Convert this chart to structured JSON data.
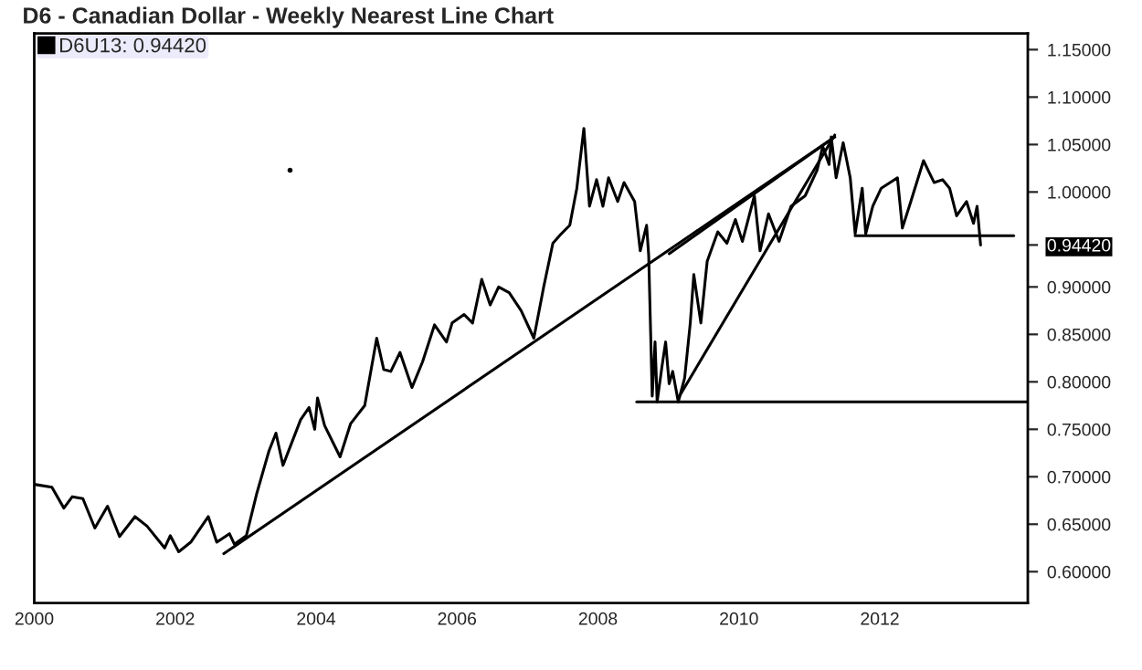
{
  "chart_data": {
    "type": "line",
    "title": "D6 - Canadian Dollar - Weekly Nearest Line Chart",
    "xlim": [
      2000,
      2014.1
    ],
    "xticks": [
      2000,
      2002,
      2004,
      2006,
      2008,
      2010,
      2012
    ],
    "ylim": [
      0.567,
      1.167
    ],
    "yticks": [
      {
        "value": 0.6,
        "label": "0.60000"
      },
      {
        "value": 0.65,
        "label": "0.65000"
      },
      {
        "value": 0.7,
        "label": "0.70000"
      },
      {
        "value": 0.75,
        "label": "0.75000"
      },
      {
        "value": 0.8,
        "label": "0.80000"
      },
      {
        "value": 0.85,
        "label": "0.85000"
      },
      {
        "value": 0.9,
        "label": "0.90000"
      },
      {
        "value": 0.9442,
        "label": "0.94420"
      },
      {
        "value": 1.0,
        "label": "1.00000"
      },
      {
        "value": 1.05,
        "label": "1.05000"
      },
      {
        "value": 1.1,
        "label": "1.10000"
      },
      {
        "value": 1.15,
        "label": "1.15000"
      }
    ],
    "legend": "top left",
    "grid": false,
    "series": [
      {
        "name": "D6U13: 0.94420",
        "color": "#000000",
        "x": [
          2000.0,
          2000.25,
          2000.42,
          2000.54,
          2000.69,
          2000.86,
          2001.04,
          2001.21,
          2001.43,
          2001.6,
          2001.85,
          2001.93,
          2002.05,
          2002.22,
          2002.47,
          2002.59,
          2002.77,
          2002.84,
          2003.01,
          2003.16,
          2003.33,
          2003.43,
          2003.53,
          2003.78,
          2003.9,
          2003.98,
          2004.02,
          2004.12,
          2004.34,
          2004.49,
          2004.69,
          2004.86,
          2004.96,
          2005.06,
          2005.19,
          2005.36,
          2005.51,
          2005.68,
          2005.85,
          2005.93,
          2006.1,
          2006.22,
          2006.35,
          2006.47,
          2006.59,
          2006.74,
          2006.91,
          2007.09,
          2007.23,
          2007.36,
          2007.48,
          2007.6,
          2007.7,
          2007.8,
          2007.88,
          2007.98,
          2008.07,
          2008.15,
          2008.28,
          2008.37,
          2008.52,
          2008.6,
          2008.69,
          2008.72,
          2008.77,
          2008.81,
          2008.84,
          2008.91,
          2008.96,
          2009.01,
          2009.06,
          2009.14,
          2009.23,
          2009.31,
          2009.36,
          2009.46,
          2009.55,
          2009.7,
          2009.83,
          2009.95,
          2010.05,
          2010.22,
          2010.3,
          2010.42,
          2010.57,
          2010.74,
          2010.94,
          2011.11,
          2011.19,
          2011.28,
          2011.31,
          2011.38,
          2011.48,
          2011.58,
          2011.65,
          2011.75,
          2011.8,
          2011.9,
          2012.02,
          2012.25,
          2012.32,
          2012.44,
          2012.62,
          2012.77,
          2012.89,
          2012.99,
          2013.09,
          2013.23,
          2013.33,
          2013.38,
          2013.43
        ],
        "values": [
          0.692,
          0.689,
          0.667,
          0.679,
          0.677,
          0.646,
          0.669,
          0.637,
          0.658,
          0.648,
          0.625,
          0.638,
          0.621,
          0.631,
          0.658,
          0.631,
          0.64,
          0.629,
          0.638,
          0.683,
          0.727,
          0.746,
          0.712,
          0.76,
          0.773,
          0.75,
          0.783,
          0.754,
          0.721,
          0.756,
          0.775,
          0.846,
          0.813,
          0.811,
          0.831,
          0.794,
          0.821,
          0.86,
          0.842,
          0.862,
          0.871,
          0.862,
          0.908,
          0.881,
          0.9,
          0.894,
          0.875,
          0.846,
          0.9,
          0.946,
          0.956,
          0.965,
          1.004,
          1.067,
          0.985,
          1.013,
          0.985,
          1.015,
          0.99,
          1.01,
          0.99,
          0.938,
          0.965,
          0.933,
          0.785,
          0.842,
          0.779,
          0.817,
          0.842,
          0.798,
          0.811,
          0.779,
          0.804,
          0.862,
          0.913,
          0.862,
          0.927,
          0.958,
          0.946,
          0.971,
          0.948,
          0.996,
          0.938,
          0.977,
          0.948,
          0.985,
          0.996,
          1.023,
          1.048,
          1.029,
          1.058,
          1.015,
          1.052,
          1.015,
          0.956,
          1.004,
          0.956,
          0.985,
          1.004,
          1.015,
          0.962,
          0.99,
          1.033,
          1.01,
          1.013,
          1.004,
          0.975,
          0.99,
          0.967,
          0.985,
          0.9442
        ]
      },
      {
        "type": "line",
        "color": "#000000",
        "x": [
          2002.69,
          2011.36
        ],
        "values": [
          0.619,
          1.058
        ]
      },
      {
        "type": "line",
        "color": "#000000",
        "x": [
          2009.01,
          2011.36
        ],
        "values": [
          0.935,
          1.058
        ]
      },
      {
        "type": "line",
        "color": "#000000",
        "x": [
          2009.14,
          2011.36
        ],
        "values": [
          0.783,
          1.06
        ]
      },
      {
        "type": "line",
        "color": "#000000",
        "x": [
          2008.55,
          2014.1
        ],
        "values": [
          0.779,
          0.779
        ]
      },
      {
        "type": "line",
        "color": "#000000",
        "x": [
          2011.65,
          2013.9
        ],
        "values": [
          0.954,
          0.954
        ]
      },
      {
        "type": "scatter",
        "color": "#000000",
        "x": [
          2003.63
        ],
        "values": [
          1.023
        ]
      }
    ]
  }
}
